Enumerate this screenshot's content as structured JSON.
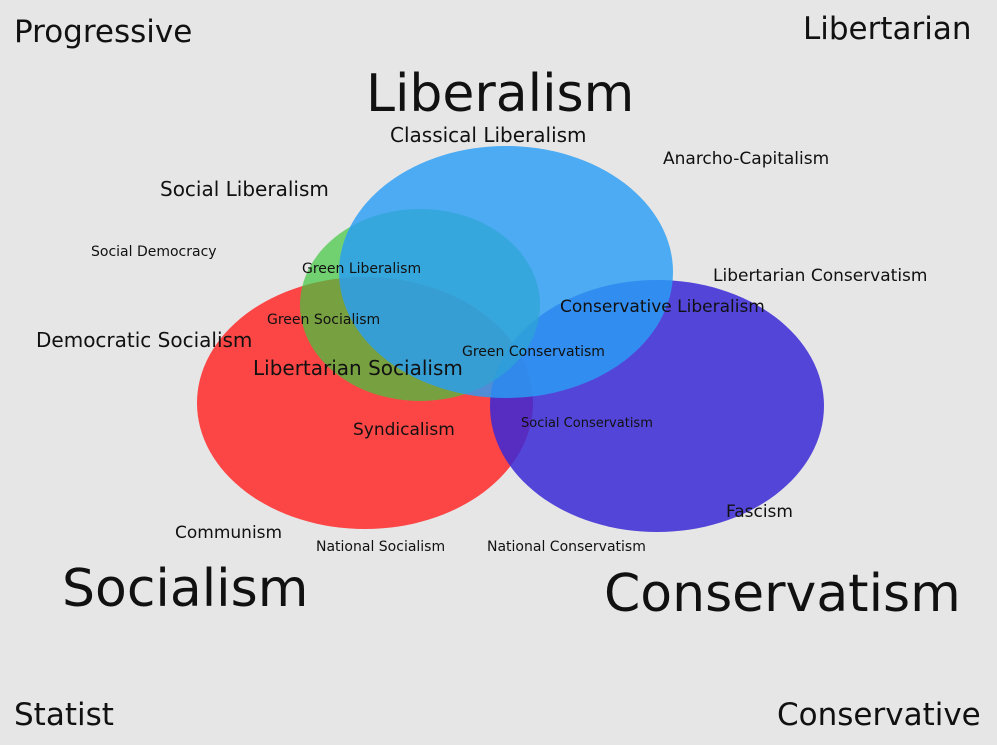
{
  "corners": {
    "top_left": "Progressive",
    "top_right": "Libertarian",
    "bottom_left": "Statist",
    "bottom_right": "Conservative"
  },
  "circles": {
    "liberalism": {
      "title": "Liberalism",
      "color": "#2a9df4"
    },
    "socialism": {
      "title": "Socialism",
      "color": "#ff2828"
    },
    "conservatism": {
      "title": "Conservatism",
      "color": "#3a28d6"
    },
    "green": {
      "color": "#3fc83f"
    }
  },
  "ideologies": {
    "classical_liberalism": "Classical Liberalism",
    "anarcho_capitalism": "Anarcho-Capitalism",
    "social_liberalism": "Social Liberalism",
    "social_democracy": "Social Democracy",
    "green_liberalism": "Green Liberalism",
    "libertarian_conservatism": "Libertarian Conservatism",
    "green_socialism": "Green Socialism",
    "conservative_liberalism": "Conservative Liberalism",
    "democratic_socialism": "Democratic Socialism",
    "green_conservatism": "Green Conservatism",
    "libertarian_socialism": "Libertarian Socialism",
    "syndicalism": "Syndicalism",
    "social_conservatism": "Social Conservatism",
    "fascism": "Fascism",
    "communism": "Communism",
    "national_socialism": "National Socialism",
    "national_conservatism": "National Conservatism"
  }
}
